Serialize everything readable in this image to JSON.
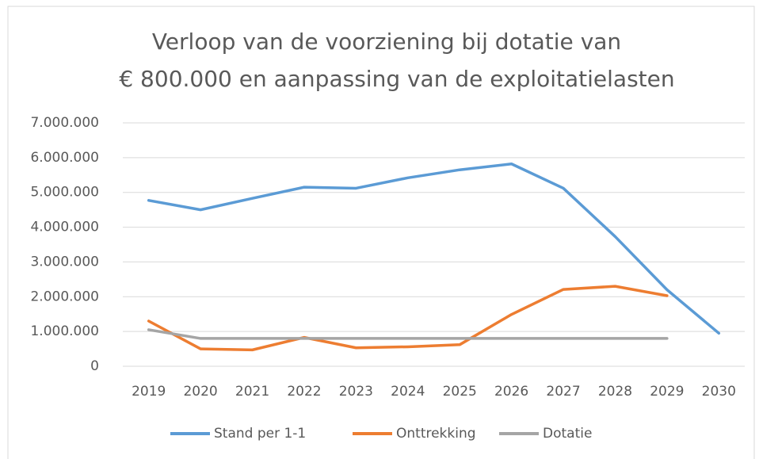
{
  "chart_data": {
    "type": "line",
    "title": [
      "Verloop van de voorziening bij dotatie van",
      "€ 800.000 en aanpassing van de exploitatielasten"
    ],
    "categories": [
      "2019",
      "2020",
      "2021",
      "2022",
      "2023",
      "2024",
      "2025",
      "2026",
      "2027",
      "2028",
      "2029",
      "2030"
    ],
    "series": [
      {
        "name": "Stand per 1-1",
        "color": "#5b9bd5",
        "values": [
          4770000,
          4500000,
          4830000,
          5150000,
          5120000,
          5420000,
          5650000,
          5820000,
          5120000,
          3730000,
          2200000,
          950000
        ]
      },
      {
        "name": "Onttrekking",
        "color": "#ed7d31",
        "values": [
          1300000,
          500000,
          470000,
          830000,
          530000,
          560000,
          620000,
          1490000,
          2210000,
          2300000,
          2030000,
          null
        ]
      },
      {
        "name": "Dotatie",
        "color": "#a5a5a5",
        "values": [
          1050000,
          800000,
          800000,
          800000,
          800000,
          800000,
          800000,
          800000,
          800000,
          800000,
          800000,
          null
        ]
      }
    ],
    "ylim": [
      0,
      7000000
    ],
    "yticks": [
      0,
      {
        "value": 1000000,
        "label": "1.000.000"
      },
      {
        "value": 2000000,
        "label": "2.000.000"
      },
      {
        "value": 3000000,
        "label": "3.000.000"
      },
      {
        "value": 4000000,
        "label": "4.000.000"
      },
      {
        "value": 5000000,
        "label": "5.000.000"
      },
      {
        "value": 6000000,
        "label": "6.000.000"
      },
      {
        "value": 7000000,
        "label": "7.000.000"
      }
    ],
    "grid": true,
    "legend": "bottom"
  }
}
